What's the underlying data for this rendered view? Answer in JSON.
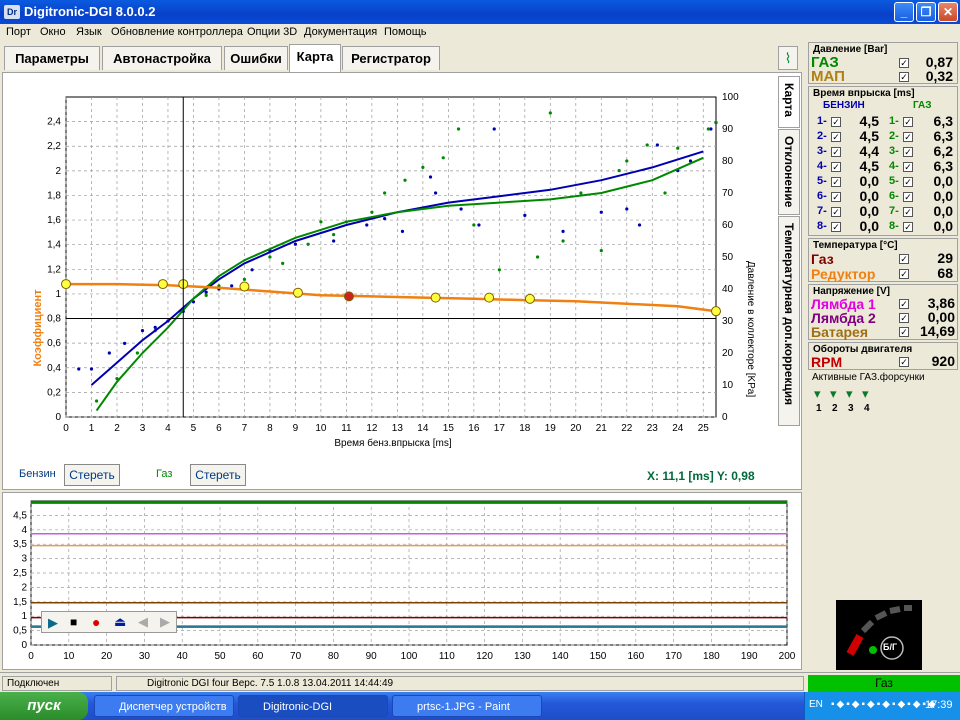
{
  "window": {
    "title": "Digitronic-DGI  8.0.0.2",
    "icon_text": "Dr"
  },
  "menu": [
    "Порт",
    "Окно",
    "Язык",
    "Обновление контроллера",
    "Опции 3D",
    "Документация",
    "Помощь"
  ],
  "tabs": [
    "Параметры",
    "Автонастройка",
    "Ошибки",
    "Карта",
    "Регистратор"
  ],
  "vtabs": [
    "Карта",
    "Отклонение",
    "Температурная доп.коррекция"
  ],
  "map": {
    "ylabel": "Коэффициент",
    "xlabel": "Время бенз.впрыска [ms]",
    "y2label": "Давление в коллекторе [KPa]",
    "legend_petrol": "Бензин",
    "legend_gas": "Газ",
    "clear_label": "Стереть",
    "cursor_readout": "X: 11,1 [ms]  Y: 0,98",
    "colors": {
      "petrol": "#0000b0",
      "gas": "#008800",
      "coef": "#f08010"
    }
  },
  "chart_data": [
    {
      "type": "line",
      "xlabel": "Время бенз.впрыска [ms]",
      "ylabel": "Коэффициент",
      "y2label": "Давление в коллекторе [KPa]",
      "xlim": [
        0,
        25.5
      ],
      "ylim": [
        0,
        2.6
      ],
      "y2lim": [
        0,
        100
      ],
      "x_ticks": [
        0,
        1,
        2,
        3,
        4,
        5,
        6,
        7,
        8,
        9,
        10,
        11,
        12,
        13,
        14,
        15,
        16,
        17,
        18,
        19,
        20,
        21,
        22,
        23,
        24,
        25
      ],
      "y_ticks": [
        0,
        0.2,
        0.4,
        0.6,
        0.8,
        1,
        1.2,
        1.4,
        1.6,
        1.8,
        2,
        2.2,
        2.4
      ],
      "y2_ticks": [
        0,
        10,
        20,
        30,
        40,
        50,
        60,
        70,
        80,
        90,
        100
      ],
      "grid": true,
      "series": [
        {
          "name": "Бензин",
          "axis": "y2",
          "x": [
            1,
            2,
            3,
            4,
            5,
            6,
            7,
            9,
            11,
            13,
            15,
            17,
            19,
            21,
            23,
            25
          ],
          "values": [
            10,
            17,
            24,
            30,
            37,
            43,
            48,
            55,
            60,
            64,
            67,
            69,
            71,
            74,
            78,
            83
          ]
        },
        {
          "name": "Газ",
          "axis": "y2",
          "x": [
            1.2,
            2,
            3,
            4,
            5,
            6,
            7,
            9,
            11,
            13,
            15,
            17,
            19,
            21,
            23,
            25
          ],
          "values": [
            2,
            11,
            20,
            28,
            37,
            44,
            49,
            56,
            61,
            64,
            66,
            67,
            68,
            70,
            74,
            81
          ]
        },
        {
          "axis": "y",
          "x": [
            0,
            2,
            4,
            6,
            8,
            10,
            12,
            14,
            16,
            18,
            20,
            22,
            24,
            25.5
          ],
          "values": [
            1.08,
            1.08,
            1.07,
            1.05,
            1.02,
            0.99,
            0.98,
            0.97,
            0.96,
            0.95,
            0.94,
            0.92,
            0.9,
            0.86
          ]
        }
      ],
      "points_petrol": [
        [
          0.5,
          15
        ],
        [
          1,
          15
        ],
        [
          1.7,
          20
        ],
        [
          2.3,
          23
        ],
        [
          3,
          27
        ],
        [
          3.5,
          28
        ],
        [
          4,
          30
        ],
        [
          4.6,
          33
        ],
        [
          5,
          36
        ],
        [
          5.5,
          39
        ],
        [
          6,
          40
        ],
        [
          6.5,
          41
        ],
        [
          7.3,
          46
        ],
        [
          8,
          52
        ],
        [
          9,
          54
        ],
        [
          10.5,
          55
        ],
        [
          11.8,
          60
        ],
        [
          12.5,
          62
        ],
        [
          13.2,
          58
        ],
        [
          14.3,
          75
        ],
        [
          14.5,
          70
        ],
        [
          15.5,
          65
        ],
        [
          16.2,
          60
        ],
        [
          16.8,
          90
        ],
        [
          18,
          63
        ],
        [
          19.5,
          58
        ],
        [
          21,
          64
        ],
        [
          22,
          65
        ],
        [
          22.5,
          60
        ],
        [
          23.2,
          85
        ],
        [
          24,
          77
        ],
        [
          24.5,
          80
        ],
        [
          25.3,
          90
        ],
        [
          25.5,
          92
        ]
      ],
      "points_gas": [
        [
          1.2,
          5
        ],
        [
          2,
          12
        ],
        [
          2.8,
          20
        ],
        [
          3.5,
          27
        ],
        [
          4.5,
          33
        ],
        [
          5.5,
          38
        ],
        [
          6,
          41
        ],
        [
          7,
          43
        ],
        [
          8,
          50
        ],
        [
          8.5,
          48
        ],
        [
          9.5,
          54
        ],
        [
          10,
          61
        ],
        [
          10.5,
          57
        ],
        [
          11,
          61
        ],
        [
          12,
          64
        ],
        [
          12.5,
          70
        ],
        [
          13.3,
          74
        ],
        [
          14,
          78
        ],
        [
          14.8,
          81
        ],
        [
          15.4,
          90
        ],
        [
          16,
          60
        ],
        [
          17,
          46
        ],
        [
          18.5,
          50
        ],
        [
          19,
          95
        ],
        [
          19.5,
          55
        ],
        [
          20.2,
          70
        ],
        [
          21,
          52
        ],
        [
          21.7,
          77
        ],
        [
          22,
          80
        ],
        [
          22.8,
          85
        ],
        [
          23.5,
          70
        ],
        [
          24,
          84
        ],
        [
          25.2,
          90
        ],
        [
          25.5,
          92
        ]
      ],
      "highlight_points": [
        [
          0,
          1.08
        ],
        [
          3.8,
          1.08
        ],
        [
          4.6,
          1.08
        ],
        [
          7,
          1.06
        ],
        [
          9.1,
          1.01
        ],
        [
          11.1,
          0.98
        ],
        [
          14.5,
          0.97
        ],
        [
          16.6,
          0.97
        ],
        [
          18.2,
          0.96
        ],
        [
          25.5,
          0.86
        ]
      ]
    },
    {
      "type": "line",
      "xlim": [
        0,
        200
      ],
      "ylim": [
        0,
        5
      ],
      "x_ticks": [
        0,
        10,
        20,
        30,
        40,
        50,
        60,
        70,
        80,
        90,
        100,
        110,
        120,
        130,
        140,
        150,
        160,
        170,
        180,
        190,
        200
      ],
      "y_ticks": [
        0,
        0.5,
        1,
        1.5,
        2,
        2.5,
        3,
        3.5,
        4,
        4.5
      ],
      "grid": true,
      "series": [
        {
          "x": [
            0,
            200
          ],
          "values": [
            4.95,
            4.95
          ]
        },
        {
          "x": [
            0,
            200
          ],
          "values": [
            3.86,
            3.86
          ]
        },
        {
          "x": [
            0,
            200
          ],
          "values": [
            3.45,
            3.45
          ]
        },
        {
          "x": [
            0,
            200
          ],
          "values": [
            1.47,
            1.47
          ]
        },
        {
          "x": [
            0,
            200
          ],
          "values": [
            0.95,
            0.95
          ]
        },
        {
          "x": [
            0,
            200
          ],
          "values": [
            0.65,
            0.65
          ]
        },
        {
          "x": [
            0,
            200
          ],
          "values": [
            0.62,
            0.62
          ]
        }
      ]
    }
  ],
  "right": {
    "pressure": {
      "title": "Давление [Bar]",
      "rows": [
        {
          "label": "ГАЗ",
          "value": "0,87",
          "color": "#008800"
        },
        {
          "label": "МАП",
          "value": "0,32",
          "color": "#b08010"
        }
      ]
    },
    "injection": {
      "title": "Время впрыска [ms]",
      "col_petrol": "БЕНЗИН",
      "col_gas": "ГАЗ",
      "petrol": [
        {
          "n": "1-",
          "v": "4,5"
        },
        {
          "n": "2-",
          "v": "4,5"
        },
        {
          "n": "3-",
          "v": "4,4"
        },
        {
          "n": "4-",
          "v": "4,5"
        },
        {
          "n": "5-",
          "v": "0,0"
        },
        {
          "n": "6-",
          "v": "0,0"
        },
        {
          "n": "7-",
          "v": "0,0"
        },
        {
          "n": "8-",
          "v": "0,0"
        }
      ],
      "gas": [
        {
          "n": "1-",
          "v": "6,3"
        },
        {
          "n": "2-",
          "v": "6,3"
        },
        {
          "n": "3-",
          "v": "6,2"
        },
        {
          "n": "4-",
          "v": "6,3"
        },
        {
          "n": "5-",
          "v": "0,0"
        },
        {
          "n": "6-",
          "v": "0,0"
        },
        {
          "n": "7-",
          "v": "0,0"
        },
        {
          "n": "8-",
          "v": "0,0"
        }
      ]
    },
    "temperature": {
      "title": "Температура [°C]",
      "rows": [
        {
          "label": "Газ",
          "value": "29",
          "color": "#800000"
        },
        {
          "label": "Редуктор",
          "value": "68",
          "color": "#f08010"
        }
      ]
    },
    "voltage": {
      "title": "Напряжение [V]",
      "rows": [
        {
          "label": "Лямбда 1",
          "value": "3,86",
          "color": "#e000e0"
        },
        {
          "label": "Лямбда 2",
          "value": "0,00",
          "color": "#800080"
        },
        {
          "label": "Батарея",
          "value": "14,69",
          "color": "#a07010"
        }
      ]
    },
    "rpm": {
      "title": "Обороты двигателя",
      "label": "RPM",
      "value": "920"
    },
    "injectors": {
      "title": "Активные ГАЗ.форсунки",
      "labels": [
        "1",
        "2",
        "3",
        "4"
      ]
    },
    "switch_label": "Б/Г",
    "mode": "Газ"
  },
  "status": {
    "connected": "Подключен",
    "device": "Digitronic DGI four   Верс. 7.5  1.0.8   13.04.2011 14:44:49"
  },
  "taskbar": {
    "start": "пуск",
    "tasks": [
      "Диспетчер устройств",
      "Digitronic-DGI",
      "prtsc-1.JPG - Paint"
    ],
    "lang": "EN",
    "clock": "17:39"
  }
}
